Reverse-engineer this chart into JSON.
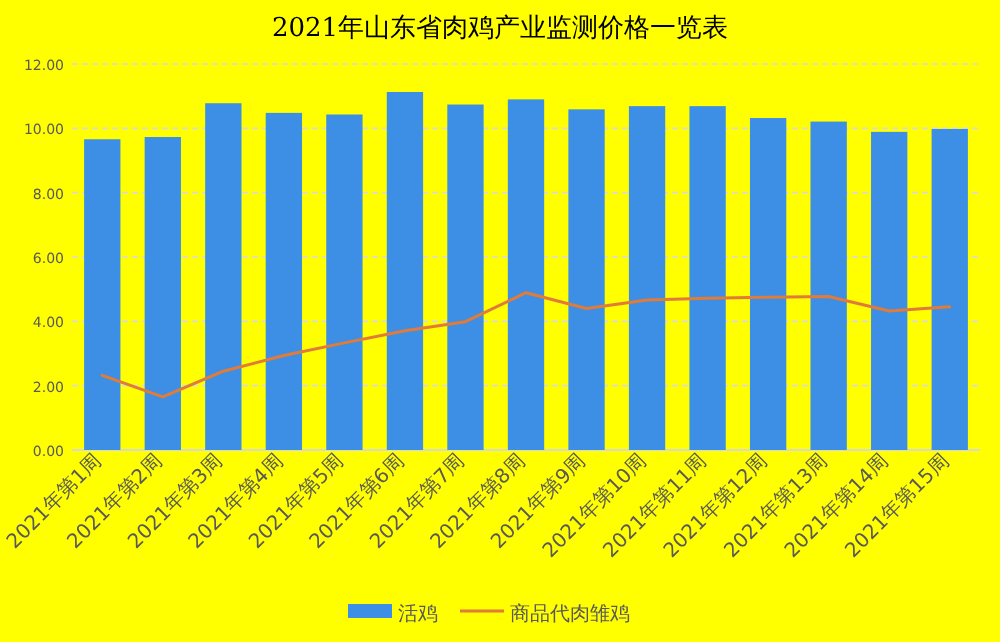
{
  "chart_data": {
    "type": "bar",
    "title": "2021年山东省肉鸡产业监测价格一览表",
    "categories": [
      "2021年第1周",
      "2021年第2周",
      "2021年第3周",
      "2021年第4周",
      "2021年第5周",
      "2021年第6周",
      "2021年第7周",
      "2021年第8周",
      "2021年第9周",
      "2021年第10周",
      "2021年第11周",
      "2021年第12周",
      "2021年第13周",
      "2021年第14周",
      "2021年第15周"
    ],
    "series": [
      {
        "name": "活鸡",
        "color": "#3d8fe6",
        "values": [
          9.66,
          9.73,
          10.78,
          10.48,
          10.43,
          11.13,
          10.74,
          10.9,
          10.59,
          10.69,
          10.69,
          10.32,
          10.21,
          9.89,
          9.98
        ]
      },
      {
        "name": "商品代肉雏鸡",
        "type": "line",
        "color": "#e07b39",
        "values": [
          2.32,
          1.65,
          2.45,
          2.94,
          3.33,
          3.71,
          3.99,
          4.89,
          4.4,
          4.66,
          4.72,
          4.75,
          4.77,
          4.32,
          4.45
        ]
      }
    ],
    "ylim": [
      0,
      12
    ],
    "yticks": [
      {
        "value": 0,
        "label": "0.00"
      },
      {
        "value": 2,
        "label": "2.00"
      },
      {
        "value": 4,
        "label": "4.00"
      },
      {
        "value": 6,
        "label": "6.00"
      },
      {
        "value": 8,
        "label": "8.00"
      },
      {
        "value": 10,
        "label": "10.00"
      },
      {
        "value": 12,
        "label": "12.00"
      }
    ],
    "grid": "y",
    "legend": "bottom",
    "marker": "none",
    "line_style": "solid"
  }
}
